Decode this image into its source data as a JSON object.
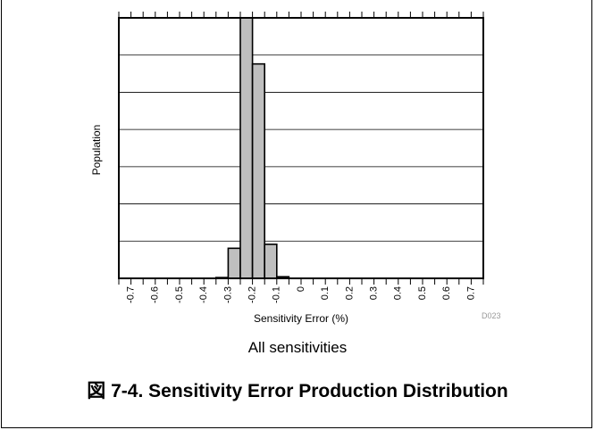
{
  "figure": {
    "caption": "図 7-4. Sensitivity Error Production Distribution",
    "subtitle": "All sensitivities",
    "code": "D023"
  },
  "chart_data": {
    "type": "bar",
    "xlabel": "Sensitivity Error (%)",
    "ylabel": "Population",
    "xlim": [
      -0.75,
      0.75
    ],
    "ylim": [
      0,
      65
    ],
    "xticks": [
      "-0.7",
      "-0.6",
      "-0.5",
      "-0.4",
      "-0.3",
      "-0.2",
      "-0.1",
      "0",
      "0.1",
      "0.2",
      "0.3",
      "0.4",
      "0.5",
      "0.6",
      "0.7"
    ],
    "bin_width": 0.05,
    "bins": [
      {
        "x0": -0.35,
        "x1": -0.3,
        "value": 0.2
      },
      {
        "x0": -0.3,
        "x1": -0.25,
        "value": 7.5
      },
      {
        "x0": -0.25,
        "x1": -0.2,
        "value": 66
      },
      {
        "x0": -0.2,
        "x1": -0.15,
        "value": 53.5
      },
      {
        "x0": -0.15,
        "x1": -0.1,
        "value": 8.5
      },
      {
        "x0": -0.1,
        "x1": -0.05,
        "value": 0.4
      }
    ],
    "grid": "horizontal",
    "bar_color": "#bfbfbf"
  }
}
